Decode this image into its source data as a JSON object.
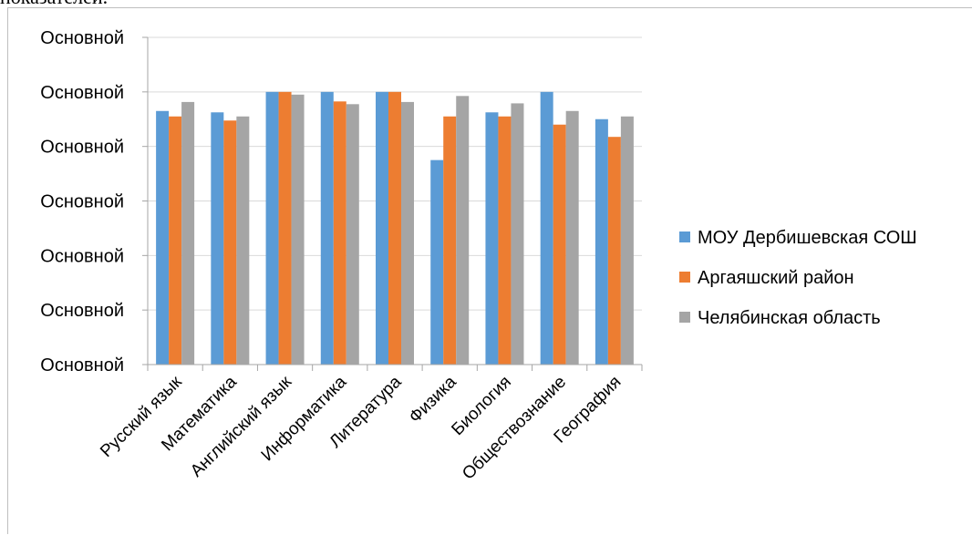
{
  "page": {
    "top_text": "показателей."
  },
  "chart_data": {
    "type": "bar",
    "title": "",
    "xlabel": "",
    "ylabel": "",
    "ylim": [
      0,
      1.2
    ],
    "y_tick_values": [
      0,
      0.2,
      0.4,
      0.6,
      0.8,
      1.0,
      1.2
    ],
    "y_tick_labels": [
      "Основной",
      "Основной",
      "Основной",
      "Основной",
      "Основной",
      "Основной",
      "Основной"
    ],
    "grid": true,
    "legend_position": "right",
    "categories": [
      "Русский язык",
      "Математика",
      "Английский язык",
      "Информатика",
      "Литература",
      "Физика",
      "Биология",
      "Обществознание",
      "География"
    ],
    "series": [
      {
        "name": "МОУ Дербишевская СОШ",
        "color": "#5b9bd5",
        "values": [
          0.93,
          0.925,
          1.0,
          1.0,
          1.0,
          0.75,
          0.925,
          1.0,
          0.9
        ]
      },
      {
        "name": "Аргаяшский район",
        "color": "#ed7d31",
        "values": [
          0.91,
          0.895,
          1.0,
          0.965,
          1.0,
          0.91,
          0.91,
          0.88,
          0.835
        ]
      },
      {
        "name": "Челябинская область",
        "color": "#a5a5a5",
        "values": [
          0.963,
          0.91,
          0.99,
          0.955,
          0.963,
          0.985,
          0.958,
          0.93,
          0.91
        ]
      }
    ]
  }
}
